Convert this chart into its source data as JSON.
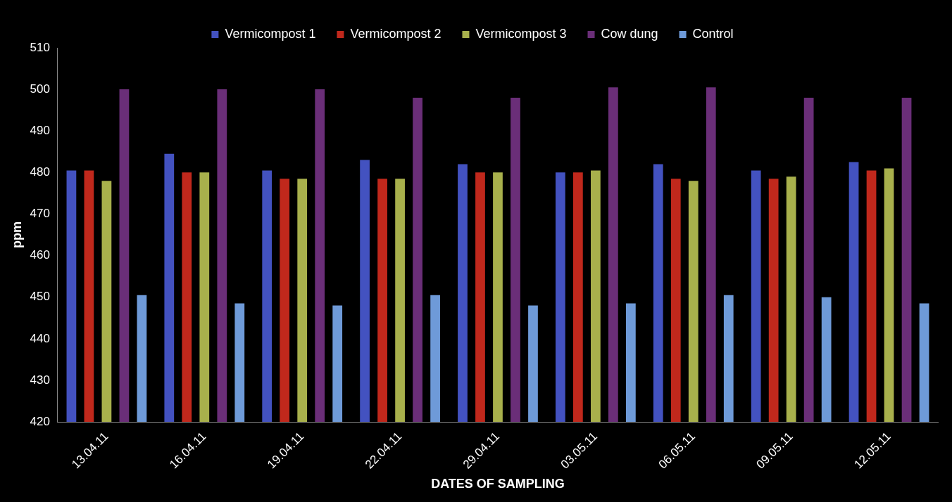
{
  "chart_data": {
    "type": "bar",
    "xlabel": "DATES OF SAMPLING",
    "ylabel": "ppm",
    "categories": [
      "13.04.11",
      "16.04.11",
      "19.04.11",
      "22.04.11",
      "29.04.11",
      "03.05.11",
      "06.05.11",
      "09.05.11",
      "12.05.11"
    ],
    "series": [
      {
        "name": "Vermicompost 1",
        "color": "#4352c0",
        "values": [
          480.5,
          484.5,
          480.5,
          483,
          482,
          480,
          482,
          480.5,
          482.5
        ]
      },
      {
        "name": "Vermicompost 2",
        "color": "#c0281c",
        "values": [
          480.5,
          480,
          478.5,
          478.5,
          480,
          480,
          478.5,
          478.5,
          480.5
        ]
      },
      {
        "name": "Vermicompost 3",
        "color": "#a8b04c",
        "values": [
          478,
          480,
          478.5,
          478.5,
          480,
          480.5,
          478,
          479,
          481
        ]
      },
      {
        "name": "Cow dung",
        "color": "#6a2e78",
        "values": [
          500,
          500,
          500,
          498,
          498,
          500.5,
          500.5,
          498,
          498
        ]
      },
      {
        "name": "Control",
        "color": "#6e9ad8",
        "values": [
          450.5,
          448.5,
          448,
          450.5,
          448,
          448.5,
          450.5,
          450,
          448.5
        ]
      }
    ],
    "ylim": [
      420,
      510
    ],
    "yticks": [
      420,
      430,
      440,
      450,
      460,
      470,
      480,
      490,
      500,
      510
    ],
    "grid": false,
    "legend": "top"
  }
}
